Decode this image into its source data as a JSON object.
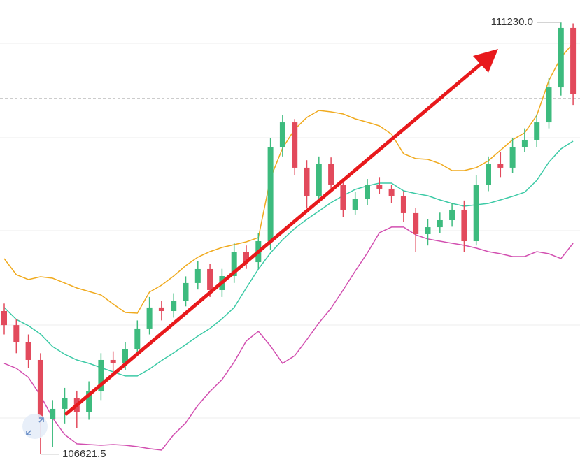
{
  "chart_data": {
    "type": "candlestick",
    "ylim": [
      106464,
      111470
    ],
    "candles": [
      [
        108150,
        108230,
        107900,
        108000
      ],
      [
        108000,
        108060,
        107700,
        107815
      ],
      [
        107815,
        107900,
        107540,
        107628
      ],
      [
        107628,
        107700,
        106621.5,
        106994
      ],
      [
        106994,
        107200,
        106700,
        107106
      ],
      [
        107106,
        107330,
        106950,
        107218
      ],
      [
        107218,
        107300,
        106900,
        107069
      ],
      [
        107069,
        107400,
        106990,
        107292
      ],
      [
        107292,
        107700,
        107200,
        107628
      ],
      [
        107628,
        107720,
        107480,
        107591
      ],
      [
        107591,
        107820,
        107520,
        107740
      ],
      [
        107740,
        108050,
        107680,
        107964
      ],
      [
        107964,
        108300,
        107900,
        108188
      ],
      [
        108188,
        108260,
        108050,
        108150
      ],
      [
        108150,
        108340,
        108080,
        108262
      ],
      [
        108262,
        108520,
        108200,
        108449
      ],
      [
        108449,
        108680,
        108380,
        108598
      ],
      [
        108598,
        108650,
        108300,
        108374
      ],
      [
        108374,
        108600,
        108300,
        108523
      ],
      [
        108523,
        108880,
        108450,
        108784
      ],
      [
        108784,
        108850,
        108600,
        108672
      ],
      [
        108672,
        108980,
        108600,
        108896
      ],
      [
        108896,
        110000,
        108800,
        109903
      ],
      [
        109903,
        110240,
        109800,
        110164
      ],
      [
        110164,
        110200,
        109600,
        109680
      ],
      [
        109680,
        109760,
        109250,
        109381
      ],
      [
        109381,
        109800,
        109300,
        109717
      ],
      [
        109717,
        109790,
        109420,
        109493
      ],
      [
        109493,
        109560,
        109150,
        109232
      ],
      [
        109232,
        109420,
        109180,
        109344
      ],
      [
        109344,
        109560,
        109280,
        109493
      ],
      [
        109493,
        109580,
        109400,
        109456
      ],
      [
        109456,
        109500,
        109300,
        109381
      ],
      [
        109381,
        109430,
        109100,
        109195
      ],
      [
        109195,
        109250,
        108780,
        108971
      ],
      [
        108971,
        109130,
        108850,
        109045
      ],
      [
        109045,
        109200,
        108980,
        109120
      ],
      [
        109120,
        109300,
        109050,
        109232
      ],
      [
        109232,
        109330,
        108780,
        108896
      ],
      [
        108896,
        109600,
        108850,
        109493
      ],
      [
        109493,
        109800,
        109430,
        109717
      ],
      [
        109717,
        109850,
        109580,
        109680
      ],
      [
        109680,
        110000,
        109620,
        109903
      ],
      [
        109903,
        110100,
        109850,
        109978
      ],
      [
        109978,
        110250,
        109900,
        110164
      ],
      [
        110164,
        110640,
        110100,
        110537
      ],
      [
        110537,
        111230,
        110450,
        111172
      ],
      [
        111172,
        111220,
        110350,
        110463
      ]
    ],
    "up_color": "#3dbb7e",
    "down_color": "#e24a5c",
    "series": [
      {
        "color": "#f0aa1e",
        "values": [
          108710,
          108538,
          108486,
          108516,
          108501,
          108449,
          108396,
          108359,
          108322,
          108225,
          108135,
          108128,
          108352,
          108426,
          108523,
          108635,
          108725,
          108784,
          108829,
          108859,
          108889,
          108934,
          109568,
          109889,
          110090,
          110217,
          110291,
          110276,
          110254,
          110202,
          110165,
          110127,
          110038,
          109829,
          109777,
          109769,
          109724,
          109650,
          109650,
          109680,
          109754,
          109866,
          109978,
          110053,
          110239,
          110612,
          110858,
          111008
        ]
      },
      {
        "color": "#3ccaa6",
        "values": [
          108188,
          108061,
          107994,
          107904,
          107770,
          107688,
          107628,
          107591,
          107546,
          107501,
          107457,
          107457,
          107531,
          107621,
          107703,
          107792,
          107882,
          107964,
          108068,
          108188,
          108396,
          108598,
          108770,
          108911,
          109031,
          109128,
          109217,
          109307,
          109381,
          109448,
          109486,
          109515,
          109515,
          109433,
          109404,
          109381,
          109336,
          109299,
          109269,
          109284,
          109299,
          109336,
          109374,
          109418,
          109545,
          109739,
          109881,
          109963
        ]
      },
      {
        "color": "#d24fb0",
        "values": [
          107591,
          107539,
          107442,
          107248,
          107009,
          106830,
          106733,
          106725,
          106718,
          106725,
          106718,
          106703,
          106681,
          106666,
          106830,
          106957,
          107143,
          107292,
          107419,
          107606,
          107830,
          107934,
          107777,
          107591,
          107673,
          107844,
          108024,
          108180,
          108374,
          108576,
          108770,
          108986,
          109046,
          109046,
          108963,
          108919,
          108896,
          108874,
          108852,
          108822,
          108784,
          108762,
          108732,
          108732,
          108784,
          108762,
          108710,
          108874
        ]
      }
    ],
    "current_price": 110418,
    "high_marker": {
      "value": 111230,
      "label": "111230.0"
    },
    "low_marker": 106621.5
  }
}
